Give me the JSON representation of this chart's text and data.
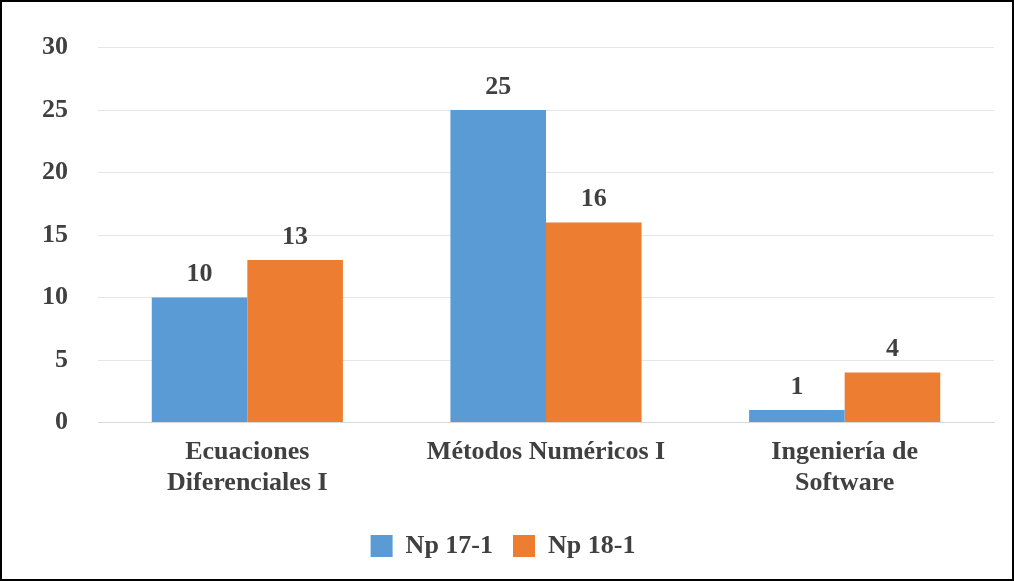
{
  "chart_data": {
    "type": "bar",
    "categories": [
      "Ecuaciones Diferenciales I",
      "Métodos Numéricos I",
      "Ingeniería de Software"
    ],
    "series": [
      {
        "name": "Np 17-1",
        "color": "#5b9bd5",
        "values": [
          10,
          25,
          1
        ]
      },
      {
        "name": "Np 18-1",
        "color": "#ed7d31",
        "values": [
          13,
          16,
          4
        ]
      }
    ],
    "ylim": [
      0,
      30
    ],
    "yticks": [
      0,
      5,
      10,
      15,
      20,
      25,
      30
    ],
    "grid": "y",
    "legend": "bottom",
    "data_labels": true
  }
}
